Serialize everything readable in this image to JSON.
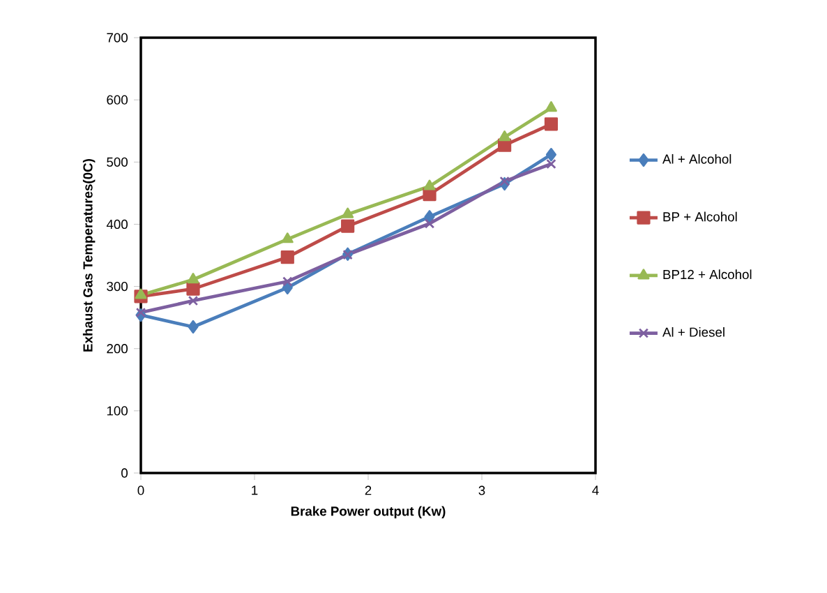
{
  "chart_data": {
    "type": "line",
    "xlabel": "Brake Power output (Kw)",
    "ylabel": "Exhaust Gas Temperatures(0C)",
    "x": [
      0,
      0.46,
      1.29,
      1.82,
      2.54,
      3.2,
      3.61
    ],
    "series": [
      {
        "name": "Al + Alcohol",
        "color": "#4a7ebb",
        "marker": "diamond",
        "values": [
          254,
          235,
          298,
          352,
          412,
          465,
          512
        ]
      },
      {
        "name": "BP + Alcohol",
        "color": "#be4b48",
        "marker": "square",
        "values": [
          284,
          296,
          347,
          397,
          448,
          527,
          561
        ]
      },
      {
        "name": "BP12 + Alcohol",
        "color": "#98b954",
        "marker": "triangle",
        "values": [
          286,
          311,
          376,
          416,
          461,
          540,
          587
        ]
      },
      {
        "name": "Al + Diesel",
        "color": "#7d5fa0",
        "marker": "cross",
        "values": [
          258,
          277,
          308,
          351,
          401,
          469,
          497
        ]
      }
    ],
    "xlim": [
      0,
      4
    ],
    "ylim": [
      0,
      700
    ],
    "xticks": [
      0,
      1,
      2,
      3,
      4
    ],
    "yticks": [
      0,
      100,
      200,
      300,
      400,
      500,
      600,
      700
    ],
    "grid": false,
    "legend": "right",
    "line_style": "solid"
  }
}
